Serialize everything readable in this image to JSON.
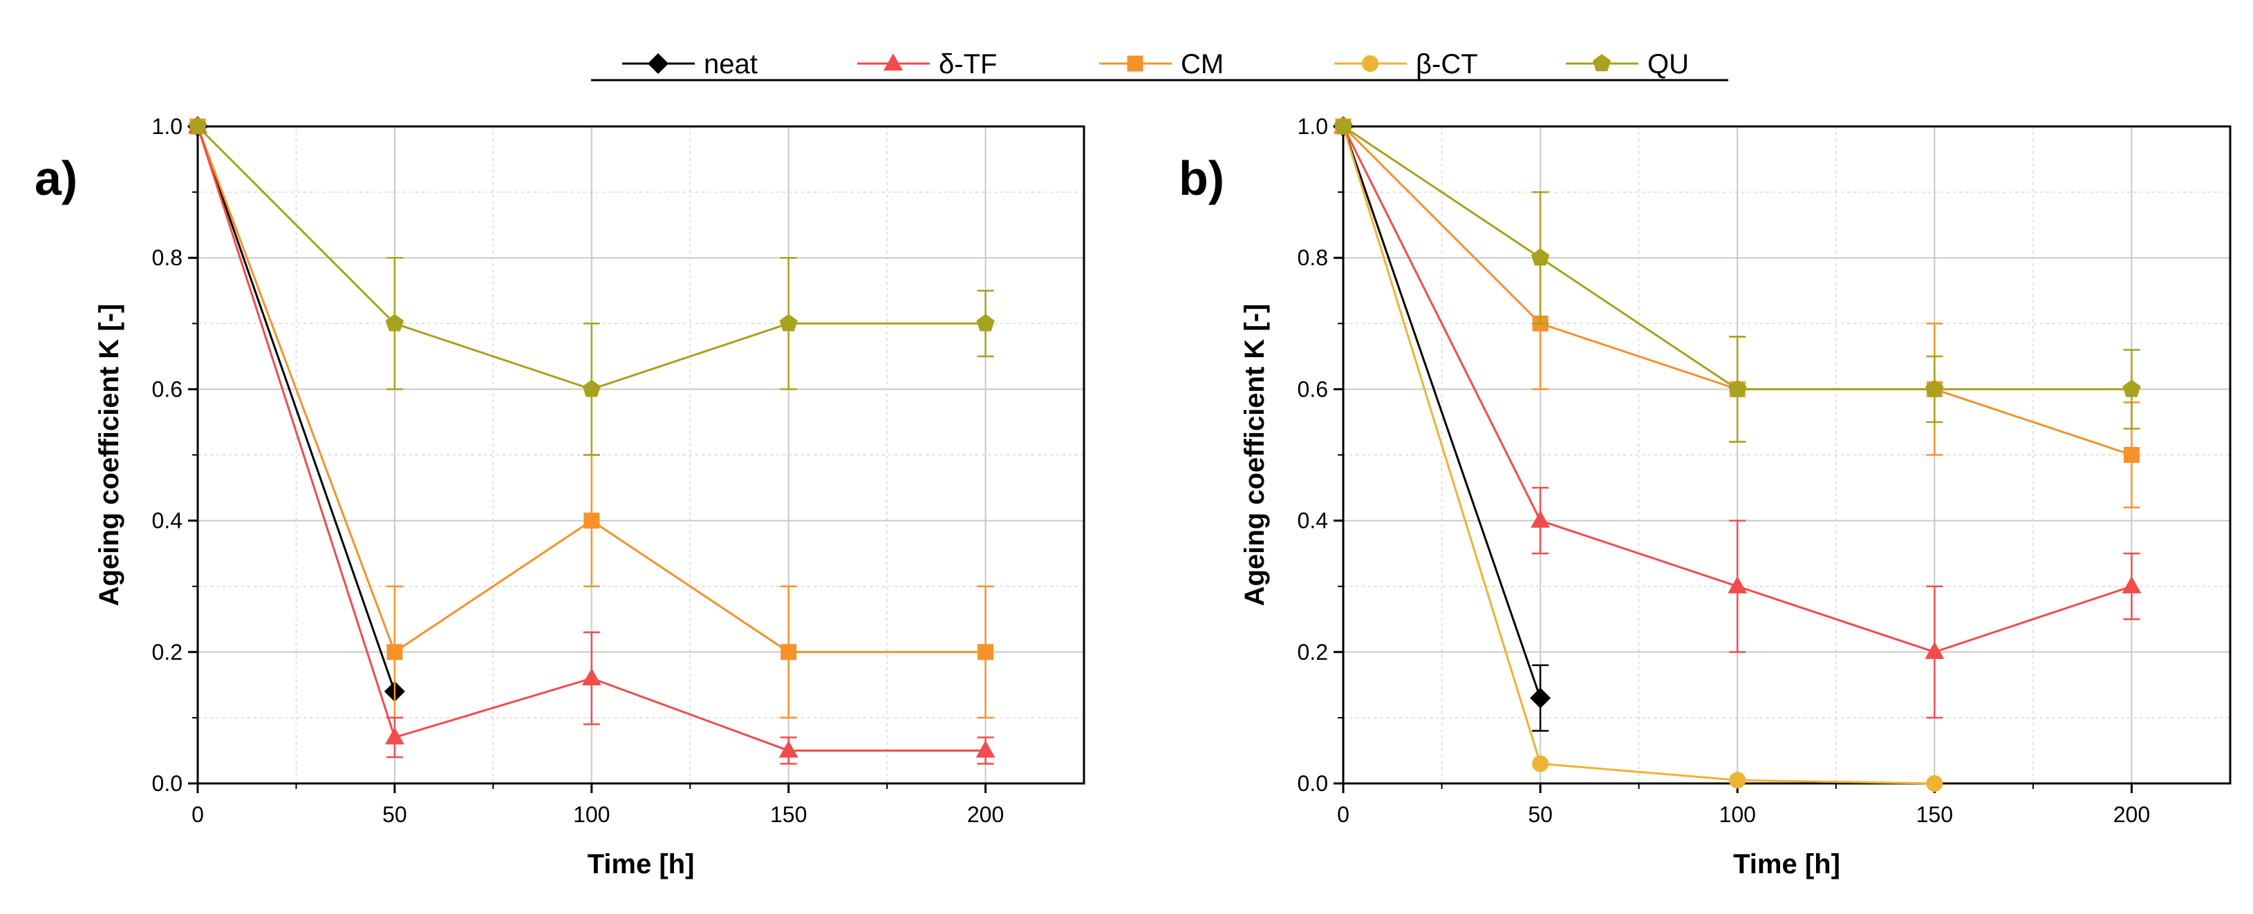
{
  "legend": [
    {
      "key": "neat",
      "label": "neat",
      "color": "#000000",
      "marker": "diamond"
    },
    {
      "key": "dtf",
      "label": "δ-TF",
      "color": "#f24b4b",
      "marker": "triangle"
    },
    {
      "key": "cm",
      "label": "CM",
      "color": "#f5922a",
      "marker": "square"
    },
    {
      "key": "bct",
      "label": "β-CT",
      "color": "#eeb333",
      "marker": "circle"
    },
    {
      "key": "qu",
      "label": "QU",
      "color": "#a8a21e",
      "marker": "pentagon"
    }
  ],
  "chart_data": [
    {
      "type": "line",
      "panel_label": "a)",
      "xlabel": "Time [h]",
      "ylabel": "Ageing coefficient K [-]",
      "xlim": [
        0,
        225
      ],
      "ylim": [
        0,
        1.0
      ],
      "xticks": [
        "0",
        "50",
        "100",
        "150",
        "200"
      ],
      "yticks": [
        "0.0",
        "0.2",
        "0.4",
        "0.6",
        "0.8",
        "1.0"
      ],
      "series": [
        {
          "key": "neat",
          "name": "neat",
          "x": [
            0,
            50
          ],
          "y": [
            1.0,
            0.14
          ],
          "err": [
            0,
            0
          ]
        },
        {
          "key": "cm",
          "name": "CM",
          "x": [
            0,
            50,
            100,
            150,
            200
          ],
          "y": [
            1.0,
            0.2,
            0.4,
            0.2,
            0.2
          ],
          "err": [
            0,
            0.1,
            0.1,
            0.1,
            0.1
          ]
        },
        {
          "key": "dtf",
          "name": "δ-TF",
          "x": [
            0,
            50,
            100,
            150,
            200
          ],
          "y": [
            1.0,
            0.07,
            0.16,
            0.05,
            0.05
          ],
          "err": [
            0,
            0.03,
            0.07,
            0.02,
            0.02
          ]
        },
        {
          "key": "qu",
          "name": "QU",
          "x": [
            0,
            50,
            100,
            150,
            200
          ],
          "y": [
            1.0,
            0.7,
            0.6,
            0.7,
            0.7
          ],
          "err": [
            0,
            0.1,
            0.1,
            0.1,
            0.05
          ]
        }
      ]
    },
    {
      "type": "line",
      "panel_label": "b)",
      "xlabel": "Time [h]",
      "ylabel": "Ageing coefficient K [-]",
      "xlim": [
        0,
        225
      ],
      "ylim": [
        0,
        1.0
      ],
      "xticks": [
        "0",
        "50",
        "100",
        "150",
        "200"
      ],
      "yticks": [
        "0.0",
        "0.2",
        "0.4",
        "0.6",
        "0.8",
        "1.0"
      ],
      "series": [
        {
          "key": "neat",
          "name": "neat",
          "x": [
            0,
            50
          ],
          "y": [
            1.0,
            0.13
          ],
          "err": [
            0,
            0.05
          ]
        },
        {
          "key": "bct",
          "name": "β-CT",
          "x": [
            0,
            50,
            100,
            150
          ],
          "y": [
            1.0,
            0.03,
            0.005,
            0.0
          ],
          "err": [
            0,
            0,
            0,
            0
          ]
        },
        {
          "key": "dtf",
          "name": "δ-TF",
          "x": [
            0,
            50,
            100,
            150,
            200
          ],
          "y": [
            1.0,
            0.4,
            0.3,
            0.2,
            0.3
          ],
          "err": [
            0,
            0.05,
            0.1,
            0.1,
            0.05
          ]
        },
        {
          "key": "cm",
          "name": "CM",
          "x": [
            0,
            50,
            100,
            150,
            200
          ],
          "y": [
            1.0,
            0.7,
            0.6,
            0.6,
            0.5
          ],
          "err": [
            0,
            0.1,
            0.08,
            0.1,
            0.08
          ]
        },
        {
          "key": "qu",
          "name": "QU",
          "x": [
            0,
            50,
            100,
            150,
            200
          ],
          "y": [
            1.0,
            0.8,
            0.6,
            0.6,
            0.6
          ],
          "err": [
            0,
            0.1,
            0.08,
            0.05,
            0.06
          ]
        }
      ]
    }
  ]
}
